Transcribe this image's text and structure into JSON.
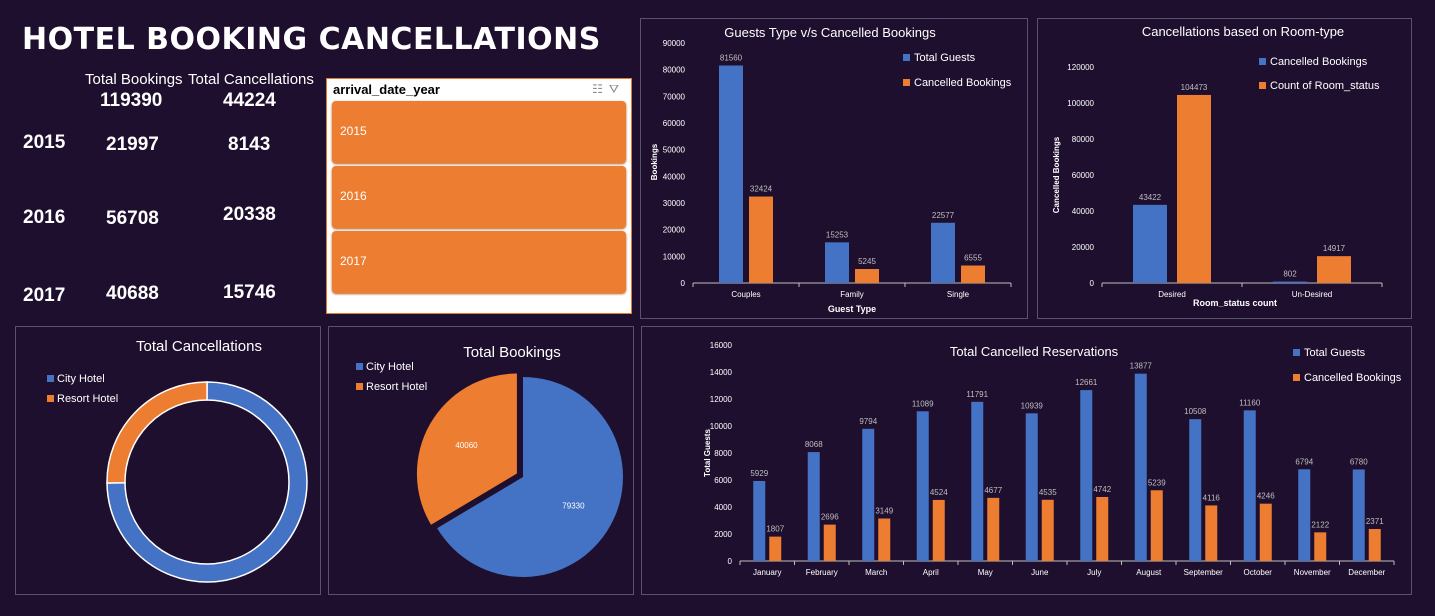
{
  "page_title": "HOTEL BOOKING CANCELLATIONS",
  "summary": {
    "total_bookings_label": "Total Bookings",
    "total_cancellations_label": "Total Cancellations",
    "total_bookings": "119390",
    "total_cancellations": "44224",
    "years": [
      {
        "year": "2015",
        "bookings": "21997",
        "cancellations": "8143"
      },
      {
        "year": "2016",
        "bookings": "56708",
        "cancellations": "20338"
      },
      {
        "year": "2017",
        "bookings": "40688",
        "cancellations": "15746"
      }
    ]
  },
  "slicer": {
    "title": "arrival_date_year",
    "items": [
      "2015",
      "2016",
      "2017"
    ],
    "icons": [
      "multi-select-icon",
      "clear-filter-icon"
    ]
  },
  "colors": {
    "blue": "#4472c4",
    "orange": "#ed7d31",
    "background": "#1e0f2e"
  },
  "chart_data": [
    {
      "id": "guest_type",
      "type": "bar",
      "title": "Guests Type v/s Cancelled Bookings",
      "xlabel": "Guest Type",
      "ylabel": "Bookings",
      "categories": [
        "Couples",
        "Family",
        "Single"
      ],
      "series": [
        {
          "name": "Total Guests",
          "values": [
            81560,
            15253,
            22577
          ]
        },
        {
          "name": "Cancelled Bookings",
          "values": [
            32424,
            5245,
            6555
          ]
        }
      ],
      "ylim": [
        0,
        90000
      ],
      "yticks": [
        0,
        10000,
        20000,
        30000,
        40000,
        50000,
        60000,
        70000,
        80000,
        90000
      ],
      "legend": "top-right"
    },
    {
      "id": "room_type",
      "type": "bar",
      "title": "Cancellations based on Room-type",
      "xlabel": "Room_status count",
      "ylabel": "Cancelled Bookings",
      "categories": [
        "Desired",
        "Un-Desired"
      ],
      "series": [
        {
          "name": "Cancelled Bookings",
          "values": [
            43422,
            802
          ]
        },
        {
          "name": "Count of Room_status",
          "values": [
            104473,
            14917
          ]
        }
      ],
      "ylim": [
        0,
        120000
      ],
      "yticks": [
        0,
        20000,
        40000,
        60000,
        80000,
        100000,
        120000
      ],
      "legend": "top-right"
    },
    {
      "id": "cancellations_donut",
      "type": "pie",
      "title": "Total Cancellations",
      "categories": [
        "City Hotel",
        "Resort Hotel"
      ],
      "values": [
        33102,
        11122
      ],
      "legend": "top-left"
    },
    {
      "id": "bookings_pie",
      "type": "pie",
      "title": "Total Bookings",
      "categories": [
        "City Hotel",
        "Resort Hotel"
      ],
      "values": [
        79330,
        40060
      ],
      "legend": "top-left"
    },
    {
      "id": "monthly",
      "type": "bar",
      "title": "Total Cancelled Reservations",
      "xlabel": "",
      "ylabel": "Total Guests",
      "categories": [
        "January",
        "February",
        "March",
        "April",
        "May",
        "June",
        "July",
        "August",
        "September",
        "October",
        "November",
        "December"
      ],
      "series": [
        {
          "name": "Total Guests",
          "values": [
            5929,
            8068,
            9794,
            11089,
            11791,
            10939,
            12661,
            13877,
            10508,
            11160,
            6794,
            6780
          ]
        },
        {
          "name": "Cancelled Bookings",
          "values": [
            1807,
            2696,
            3149,
            4524,
            4677,
            4535,
            4742,
            5239,
            4116,
            4246,
            2122,
            2371
          ]
        }
      ],
      "ylim": [
        0,
        16000
      ],
      "yticks": [
        0,
        2000,
        4000,
        6000,
        8000,
        10000,
        12000,
        14000,
        16000
      ],
      "legend": "top-right"
    }
  ]
}
